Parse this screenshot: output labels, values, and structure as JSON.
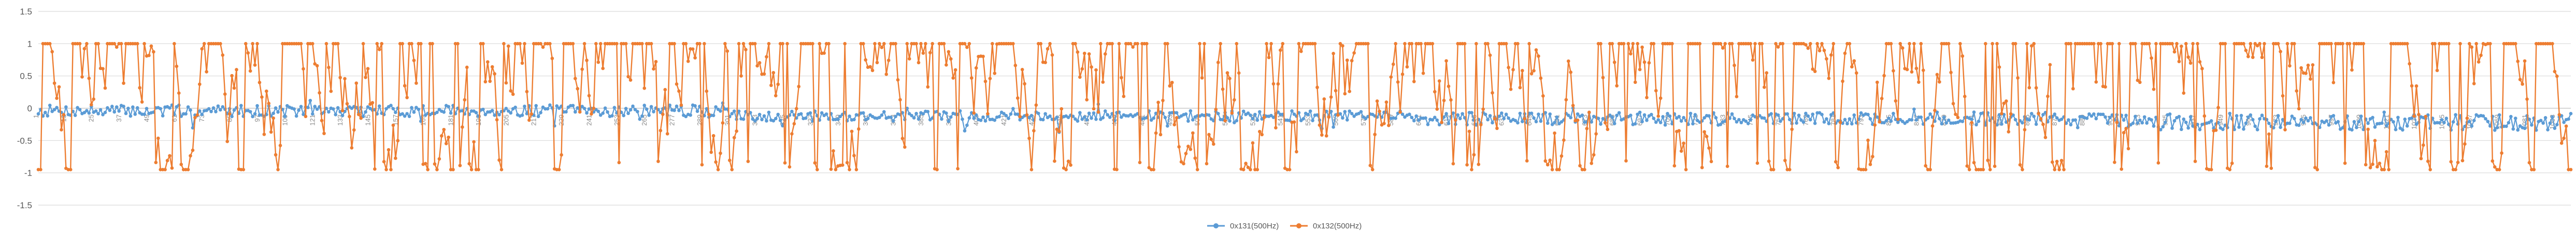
{
  "chart_data": {
    "type": "line",
    "title": "",
    "xlabel": "",
    "ylabel": "",
    "ylim": [
      -1.5,
      1.5
    ],
    "yticks": [
      "1.5",
      "1",
      "0.5",
      "0",
      "-0.5",
      "-1",
      "-1.5"
    ],
    "grid": true,
    "legend_position": "bottom",
    "x_count": 1100,
    "x_tick_every": 12,
    "series": [
      {
        "name": "0x131(500Hz)",
        "color": "#5b9bd5",
        "seed": 7,
        "segments": [
          {
            "start": 1,
            "end": 300,
            "mean": -0.04,
            "noise": 0.09
          },
          {
            "start": 301,
            "end": 600,
            "mean": -0.12,
            "noise": 0.08
          },
          {
            "start": 601,
            "end": 900,
            "mean": -0.16,
            "noise": 0.1
          },
          {
            "start": 901,
            "end": 1100,
            "mean": -0.22,
            "noise": 0.12
          }
        ]
      },
      {
        "name": "0x132(500Hz)",
        "color": "#ed7d31",
        "seed": 19,
        "range": [
          -0.95,
          1.0
        ]
      }
    ]
  }
}
